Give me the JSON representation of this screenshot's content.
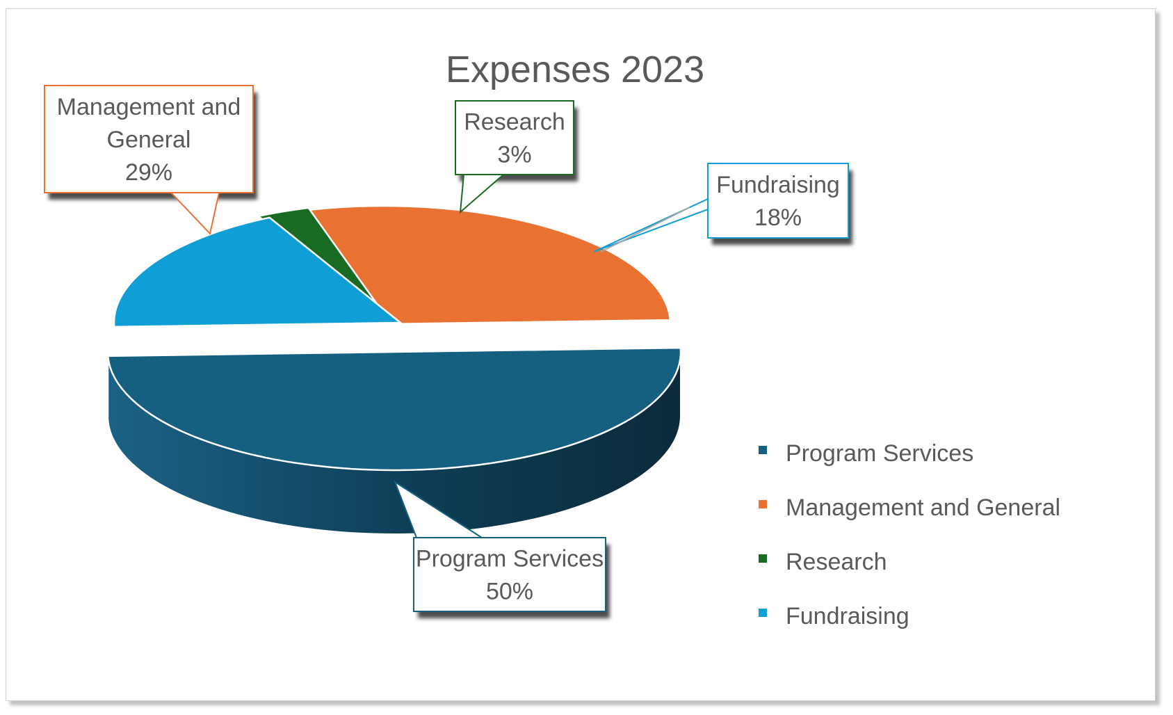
{
  "chart_data": {
    "type": "pie",
    "variant": "3d-exploded-callouts",
    "title": "Expenses 2023",
    "slices": [
      {
        "label": "Program Services",
        "value": 50,
        "value_label": "50%",
        "color": "#155f80"
      },
      {
        "label": "Management and General",
        "value": 29,
        "value_label": "29%",
        "color": "#e97132"
      },
      {
        "label": "Research",
        "value": 3,
        "value_label": "3%",
        "color": "#196b24"
      },
      {
        "label": "Fundraising",
        "value": 18,
        "value_label": "18%",
        "color": "#0f9ed5"
      }
    ],
    "callout_lines": {
      "Program Services": [
        "Program Services"
      ],
      "Management and General": [
        "Management and",
        "General"
      ],
      "Research": [
        "Research"
      ],
      "Fundraising": [
        "Fundraising"
      ]
    },
    "legend_position": "right",
    "text_color": "#595959"
  }
}
